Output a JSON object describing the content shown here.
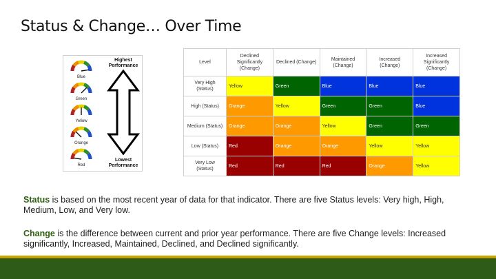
{
  "title": "Status & Change… Over Time",
  "legend": {
    "highest_label": "Highest Performance",
    "lowest_label": "Lowest Performance",
    "gauges": [
      {
        "label": "Blue",
        "level": 0.95
      },
      {
        "label": "Green",
        "level": 0.75
      },
      {
        "label": "Yellow",
        "level": 0.5
      },
      {
        "label": "Orange",
        "level": 0.25
      },
      {
        "label": "Red",
        "level": 0.05
      }
    ]
  },
  "matrix": {
    "headers": [
      "Level",
      "Declined Significantly (Change)",
      "Declined (Change)",
      "Maintained (Change)",
      "Increased (Change)",
      "Increased Significantly (Change)"
    ],
    "rows": [
      {
        "level": "Very High (Status)",
        "cells": [
          {
            "text": "Yellow",
            "color": "yellow"
          },
          {
            "text": "Green",
            "color": "green"
          },
          {
            "text": "Blue",
            "color": "blue"
          },
          {
            "text": "Blue",
            "color": "blue"
          },
          {
            "text": "Blue",
            "color": "blue"
          }
        ]
      },
      {
        "level": "High (Status)",
        "cells": [
          {
            "text": "Orange",
            "color": "orange"
          },
          {
            "text": "Yellow",
            "color": "yellow"
          },
          {
            "text": "Green",
            "color": "green"
          },
          {
            "text": "Green",
            "color": "green"
          },
          {
            "text": "Blue",
            "color": "blue"
          }
        ]
      },
      {
        "level": "Medium (Status)",
        "cells": [
          {
            "text": "Orange",
            "color": "orange"
          },
          {
            "text": "Orange",
            "color": "orange"
          },
          {
            "text": "Yellow",
            "color": "yellow"
          },
          {
            "text": "Green",
            "color": "green"
          },
          {
            "text": "Green",
            "color": "green"
          }
        ]
      },
      {
        "level": "Low (Status)",
        "cells": [
          {
            "text": "Red",
            "color": "red"
          },
          {
            "text": "Orange",
            "color": "orange"
          },
          {
            "text": "Orange",
            "color": "orange"
          },
          {
            "text": "Yellow",
            "color": "yellow"
          },
          {
            "text": "Yellow",
            "color": "yellow"
          }
        ]
      },
      {
        "level": "Very Low (Status)",
        "cells": [
          {
            "text": "Red",
            "color": "red"
          },
          {
            "text": "Red",
            "color": "red"
          },
          {
            "text": "Red",
            "color": "red"
          },
          {
            "text": "Orange",
            "color": "orange"
          },
          {
            "text": "Yellow",
            "color": "yellow"
          }
        ]
      }
    ]
  },
  "status_para": {
    "keyword": "Status",
    "text": " is based on the most recent year of data for that indicator. There are five Status levels: Very high, High, Medium, Low, and Very low."
  },
  "change_para": {
    "keyword": "Change",
    "text": " is the difference between current and prior year performance. There are five Change levels: Increased significantly, Increased, Maintained, Declined, and Declined significantly."
  },
  "colors": {
    "accent_green": "#2e5b18",
    "accent_gold": "#c8a200",
    "keyword": "#2f5e10"
  }
}
